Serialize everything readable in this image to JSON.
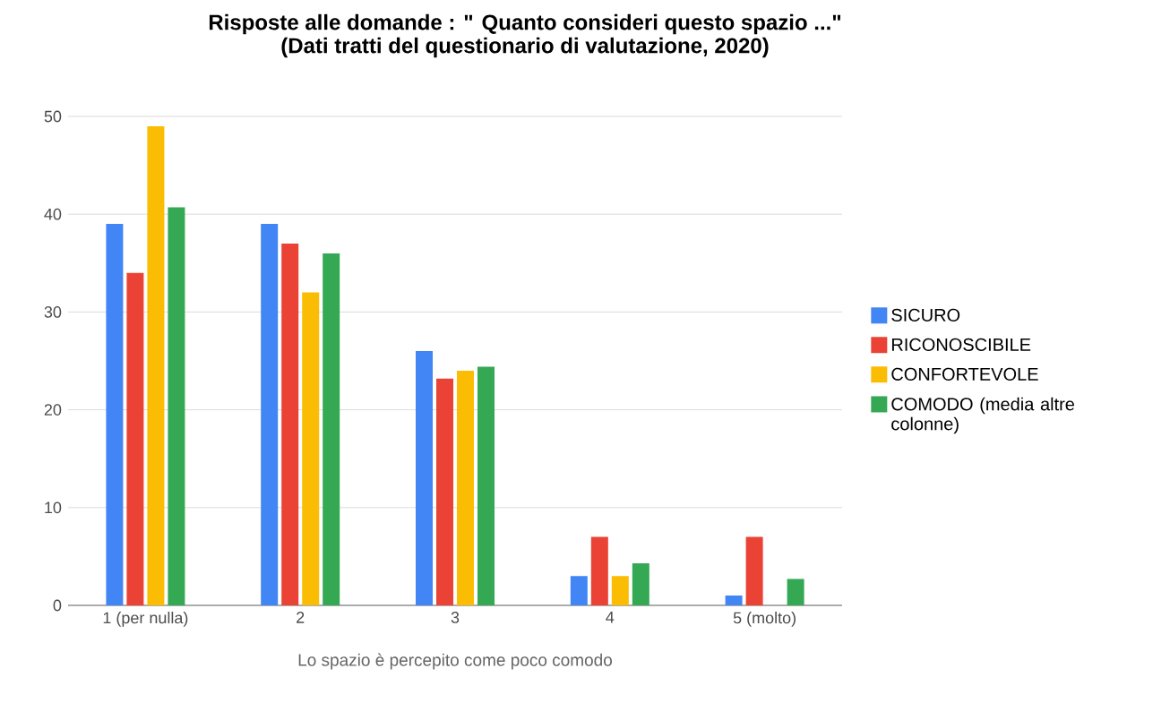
{
  "chart_data": {
    "type": "bar",
    "title": "Risposte alle domande : \" Quanto consideri questo spazio ...\"",
    "subtitle": "(Dati tratti del questionario di valutazione, 2020)",
    "xlabel": "Lo spazio è percepito come poco comodo",
    "categories": [
      "1 (per nulla)",
      "2",
      "3",
      "4",
      "5 (molto)"
    ],
    "series": [
      {
        "name": "SICURO",
        "color": "#4285f4",
        "values": [
          39,
          39,
          26,
          3,
          1
        ]
      },
      {
        "name": "RICONOSCIBILE",
        "color": "#ea4335",
        "values": [
          34,
          37,
          23.2,
          7,
          7
        ]
      },
      {
        "name": "CONFORTEVOLE",
        "color": "#fbbc04",
        "values": [
          49,
          32,
          24,
          3,
          0
        ]
      },
      {
        "name": "COMODO (media altre colonne)",
        "color": "#34a853",
        "values": [
          40.7,
          36,
          24.4,
          4.3,
          2.7
        ]
      }
    ],
    "ylim": [
      0,
      50
    ],
    "yticks": [
      0,
      10,
      20,
      30,
      40,
      50
    ],
    "grid": "y",
    "legend": "right"
  }
}
